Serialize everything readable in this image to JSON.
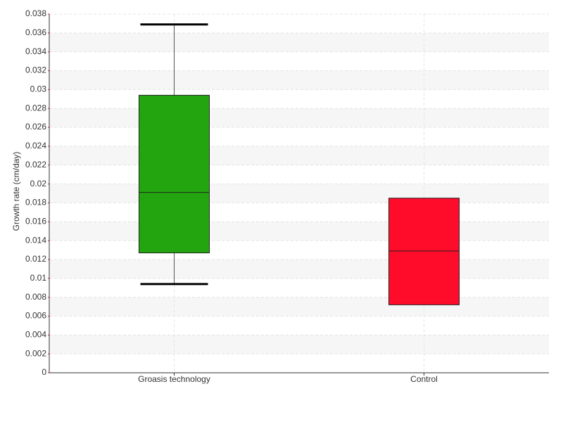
{
  "chart_data": {
    "type": "box",
    "y_label": "Growth rate (cm/day)",
    "categories": [
      "Groasis technology",
      "Control"
    ],
    "colors": [
      "#22a50f",
      "#ff0c2a"
    ],
    "min": [
      0.0094,
      null
    ],
    "q1": [
      0.0127,
      0.0072
    ],
    "median": [
      0.0191,
      0.0129
    ],
    "q3": [
      0.0294,
      0.0185
    ],
    "max": [
      0.0369,
      null
    ],
    "ylim": [
      0,
      0.038
    ],
    "yticks": [
      0,
      0.002,
      0.004,
      0.006,
      0.008,
      0.01,
      0.012,
      0.014,
      0.016,
      0.018,
      0.02,
      0.022,
      0.024,
      0.026,
      0.028,
      0.03,
      0.032,
      0.034,
      0.036,
      0.038
    ],
    "grid": true
  }
}
